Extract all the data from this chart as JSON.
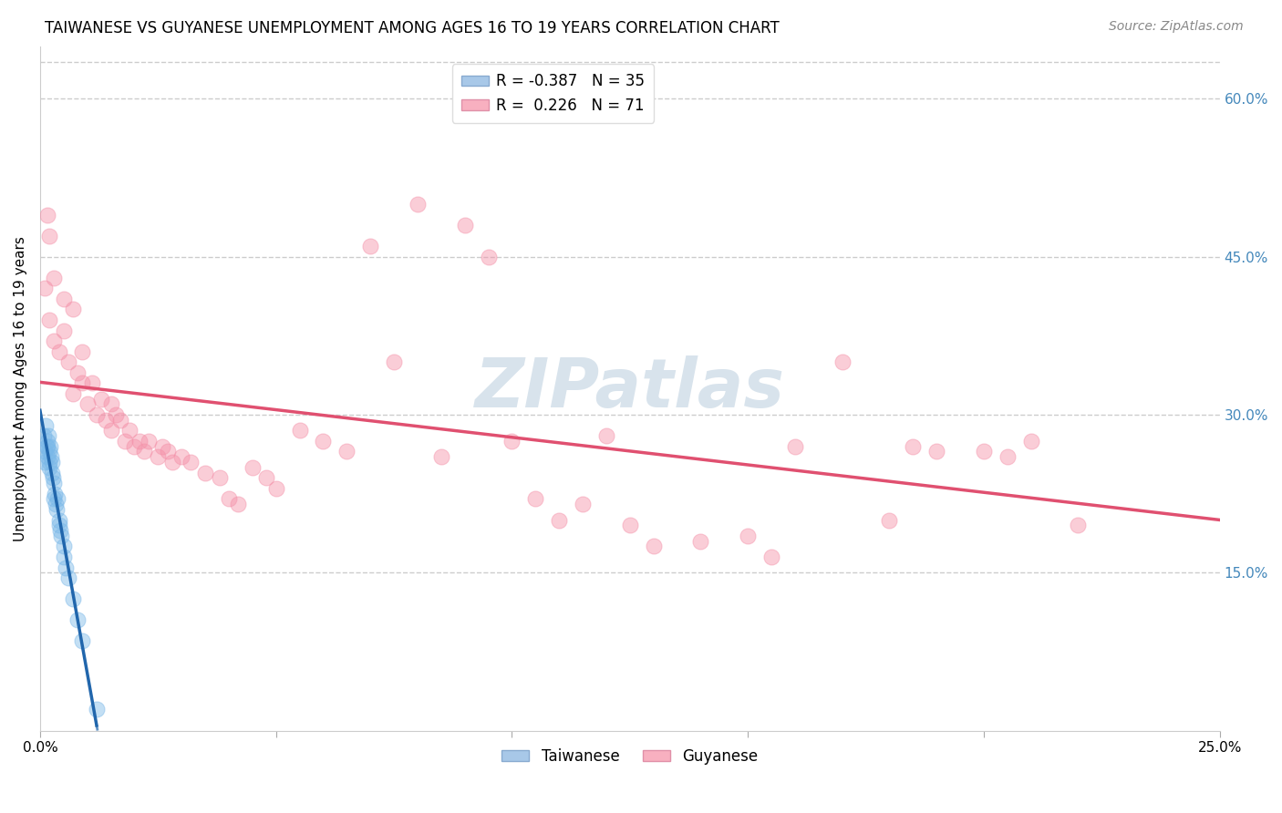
{
  "title": "TAIWANESE VS GUYANESE UNEMPLOYMENT AMONG AGES 16 TO 19 YEARS CORRELATION CHART",
  "source": "Source: ZipAtlas.com",
  "ylabel": "Unemployment Among Ages 16 to 19 years",
  "xlim": [
    0,
    0.25
  ],
  "ylim": [
    0,
    0.65
  ],
  "xtick_positions": [
    0.0,
    0.05,
    0.1,
    0.15,
    0.2,
    0.25
  ],
  "xtick_labels": [
    "0.0%",
    "",
    "",
    "",
    "",
    "25.0%"
  ],
  "right_yticks": [
    0.15,
    0.3,
    0.45,
    0.6
  ],
  "right_yticklabels": [
    "15.0%",
    "30.0%",
    "45.0%",
    "60.0%"
  ],
  "watermark": "ZIPatlas",
  "taiwanese_color": "#7ab8e8",
  "guyanese_color": "#f490a8",
  "taiwanese_line_color": "#2166ac",
  "guyanese_line_color": "#e05070",
  "background_color": "#ffffff",
  "grid_color": "#cccccc",
  "title_fontsize": 12,
  "scatter_size": 150,
  "scatter_alpha": 0.45,
  "taiwanese_x": [
    0.0008,
    0.001,
    0.001,
    0.0012,
    0.0013,
    0.0015,
    0.0015,
    0.0016,
    0.0018,
    0.002,
    0.002,
    0.002,
    0.0022,
    0.0023,
    0.0025,
    0.0026,
    0.0028,
    0.003,
    0.003,
    0.0032,
    0.0033,
    0.0035,
    0.0036,
    0.004,
    0.004,
    0.0042,
    0.0045,
    0.005,
    0.005,
    0.0055,
    0.006,
    0.007,
    0.008,
    0.009,
    0.012
  ],
  "taiwanese_y": [
    0.28,
    0.265,
    0.255,
    0.29,
    0.27,
    0.275,
    0.26,
    0.27,
    0.28,
    0.265,
    0.255,
    0.25,
    0.27,
    0.26,
    0.255,
    0.245,
    0.24,
    0.235,
    0.22,
    0.225,
    0.215,
    0.21,
    0.22,
    0.2,
    0.195,
    0.19,
    0.185,
    0.175,
    0.165,
    0.155,
    0.145,
    0.125,
    0.105,
    0.085,
    0.02
  ],
  "guyanese_x": [
    0.001,
    0.0015,
    0.002,
    0.002,
    0.003,
    0.003,
    0.004,
    0.005,
    0.005,
    0.006,
    0.007,
    0.007,
    0.008,
    0.009,
    0.009,
    0.01,
    0.011,
    0.012,
    0.013,
    0.014,
    0.015,
    0.015,
    0.016,
    0.017,
    0.018,
    0.019,
    0.02,
    0.021,
    0.022,
    0.023,
    0.025,
    0.026,
    0.027,
    0.028,
    0.03,
    0.032,
    0.035,
    0.038,
    0.04,
    0.042,
    0.045,
    0.048,
    0.05,
    0.055,
    0.06,
    0.065,
    0.07,
    0.075,
    0.08,
    0.085,
    0.09,
    0.095,
    0.1,
    0.105,
    0.11,
    0.115,
    0.12,
    0.125,
    0.13,
    0.14,
    0.15,
    0.155,
    0.16,
    0.17,
    0.18,
    0.19,
    0.2,
    0.21,
    0.22,
    0.185,
    0.205
  ],
  "guyanese_y": [
    0.42,
    0.49,
    0.39,
    0.47,
    0.37,
    0.43,
    0.36,
    0.38,
    0.41,
    0.35,
    0.4,
    0.32,
    0.34,
    0.33,
    0.36,
    0.31,
    0.33,
    0.3,
    0.315,
    0.295,
    0.31,
    0.285,
    0.3,
    0.295,
    0.275,
    0.285,
    0.27,
    0.275,
    0.265,
    0.275,
    0.26,
    0.27,
    0.265,
    0.255,
    0.26,
    0.255,
    0.245,
    0.24,
    0.22,
    0.215,
    0.25,
    0.24,
    0.23,
    0.285,
    0.275,
    0.265,
    0.46,
    0.35,
    0.5,
    0.26,
    0.48,
    0.45,
    0.275,
    0.22,
    0.2,
    0.215,
    0.28,
    0.195,
    0.175,
    0.18,
    0.185,
    0.165,
    0.27,
    0.35,
    0.2,
    0.265,
    0.265,
    0.275,
    0.195,
    0.27,
    0.26
  ]
}
